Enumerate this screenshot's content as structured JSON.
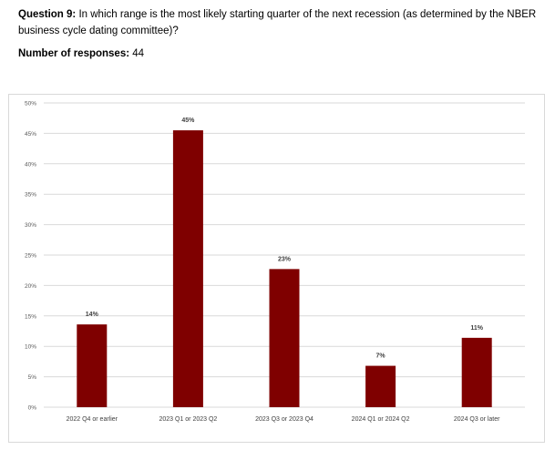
{
  "question": {
    "number_label": "Question 9:",
    "text": " In which range is the most likely starting quarter of the next recession (as determined by the NBER business cycle dating committee)?"
  },
  "responses": {
    "label": "Number of responses:",
    "count": "44"
  },
  "colors": {
    "bar": "#7f0000",
    "grid": "#d9d9d9"
  },
  "chart_data": {
    "type": "bar",
    "title": "",
    "xlabel": "",
    "ylabel": "",
    "categories": [
      "2022 Q4 or earlier",
      "2023 Q1 or 2023 Q2",
      "2023 Q3 or 2023 Q4",
      "2024 Q1 or 2024 Q2",
      "2024 Q3 or later"
    ],
    "values": [
      13.6,
      45.5,
      22.7,
      6.8,
      11.4
    ],
    "data_labels": [
      "14%",
      "45%",
      "23%",
      "7%",
      "11%"
    ],
    "ylim": [
      0,
      50
    ],
    "yticks": [
      0,
      5,
      10,
      15,
      20,
      25,
      30,
      35,
      40,
      45,
      50
    ],
    "ytick_labels": [
      "0%",
      "5%",
      "10%",
      "15%",
      "20%",
      "25%",
      "30%",
      "35%",
      "40%",
      "45%",
      "50%"
    ],
    "grid": true,
    "legend": "none"
  }
}
